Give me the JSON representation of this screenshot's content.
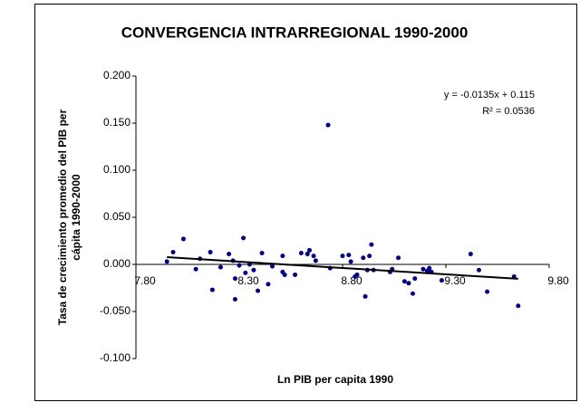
{
  "chart_data": {
    "type": "scatter",
    "title": "CONVERGENCIA INTRARREGIONAL 1990-2000",
    "xlabel": "Ln  PIB per capita 1990",
    "ylabel": [
      "Tasa de crecimiento promedio  del PIB per",
      "cápita 1990-2000"
    ],
    "color": "#000080",
    "x": [
      7.95,
      7.98,
      8.03,
      8.09,
      8.11,
      8.16,
      8.17,
      8.21,
      8.25,
      8.27,
      8.28,
      8.28,
      8.3,
      8.32,
      8.33,
      8.35,
      8.37,
      8.39,
      8.41,
      8.44,
      8.46,
      8.51,
      8.51,
      8.52,
      8.57,
      8.6,
      8.63,
      8.64,
      8.66,
      8.67,
      8.73,
      8.74,
      8.8,
      8.83,
      8.84,
      8.86,
      8.87,
      8.9,
      8.91,
      8.92,
      8.93,
      8.94,
      8.95,
      9.03,
      9.04,
      9.07,
      9.1,
      9.12,
      9.14,
      9.15,
      9.19,
      9.21,
      9.22,
      9.23,
      9.28,
      9.42,
      9.46,
      9.5,
      9.63,
      9.65
    ],
    "values": [
      0.003,
      0.013,
      0.027,
      -0.005,
      0.006,
      0.013,
      -0.027,
      -0.003,
      0.011,
      0.004,
      -0.015,
      -0.037,
      -0.001,
      0.028,
      -0.009,
      0.0,
      -0.006,
      -0.028,
      0.012,
      -0.021,
      -0.002,
      0.009,
      -0.008,
      -0.011,
      -0.011,
      0.012,
      0.011,
      0.015,
      0.009,
      0.004,
      0.148,
      -0.004,
      0.009,
      0.01,
      0.003,
      -0.013,
      -0.011,
      0.007,
      -0.034,
      -0.006,
      0.009,
      0.021,
      -0.006,
      -0.008,
      -0.005,
      0.007,
      -0.018,
      -0.02,
      -0.031,
      -0.015,
      -0.005,
      -0.007,
      -0.004,
      -0.008,
      -0.017,
      0.011,
      -0.006,
      -0.029,
      -0.013,
      -0.044
    ],
    "trendline": {
      "slope": -0.0135,
      "intercept": 0.115,
      "equation": "y = -0.0135x + 0.115",
      "r2": "R² = 0.0536"
    },
    "xlim": [
      7.8,
      9.8
    ],
    "xticks": [
      {
        "value": 7.8,
        "label": "7.80"
      },
      {
        "value": 8.3,
        "label": "8.30"
      },
      {
        "value": 8.8,
        "label": "8.80"
      },
      {
        "value": 9.3,
        "label": "9.30"
      },
      {
        "value": 9.8,
        "label": "9.80"
      }
    ],
    "ylim": [
      -0.1,
      0.2
    ],
    "yticks": [
      {
        "value": -0.1,
        "label": "-0.100"
      },
      {
        "value": -0.05,
        "label": "-0.050"
      },
      {
        "value": 0,
        "label": "0.000"
      },
      {
        "value": 0.05,
        "label": "0.050"
      },
      {
        "value": 0.1,
        "label": "0.100"
      },
      {
        "value": 0.15,
        "label": "0.150"
      },
      {
        "value": 0.2,
        "label": "0.200"
      }
    ]
  }
}
